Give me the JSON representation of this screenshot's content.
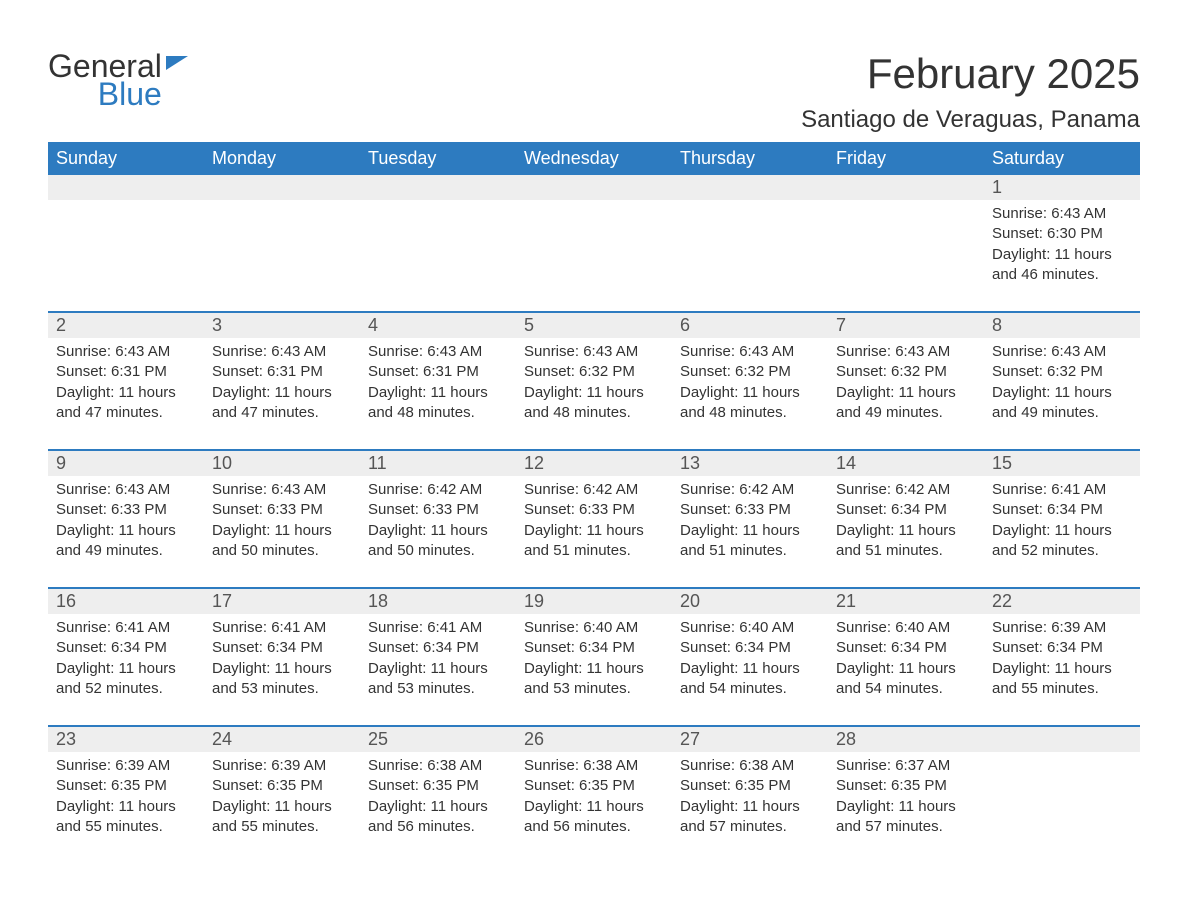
{
  "brand": {
    "general": "General",
    "blue": "Blue"
  },
  "title": "February 2025",
  "location": "Santiago de Veraguas, Panama",
  "colors": {
    "brand_blue": "#2d7bc0",
    "header_bg": "#2d7bc0",
    "header_text": "#ffffff",
    "daynum_bg": "#eeeeee",
    "body_text": "#333333",
    "page_bg": "#ffffff"
  },
  "typography": {
    "title_fontsize": 42,
    "location_fontsize": 24,
    "dow_fontsize": 18,
    "daynum_fontsize": 18,
    "detail_fontsize": 15
  },
  "days_of_week": [
    "Sunday",
    "Monday",
    "Tuesday",
    "Wednesday",
    "Thursday",
    "Friday",
    "Saturday"
  ],
  "labels": {
    "sunrise": "Sunrise:",
    "sunset": "Sunset:",
    "daylight": "Daylight:"
  },
  "weeks": [
    [
      null,
      null,
      null,
      null,
      null,
      null,
      {
        "n": "1",
        "sunrise": "6:43 AM",
        "sunset": "6:30 PM",
        "daylight": "11 hours and 46 minutes."
      }
    ],
    [
      {
        "n": "2",
        "sunrise": "6:43 AM",
        "sunset": "6:31 PM",
        "daylight": "11 hours and 47 minutes."
      },
      {
        "n": "3",
        "sunrise": "6:43 AM",
        "sunset": "6:31 PM",
        "daylight": "11 hours and 47 minutes."
      },
      {
        "n": "4",
        "sunrise": "6:43 AM",
        "sunset": "6:31 PM",
        "daylight": "11 hours and 48 minutes."
      },
      {
        "n": "5",
        "sunrise": "6:43 AM",
        "sunset": "6:32 PM",
        "daylight": "11 hours and 48 minutes."
      },
      {
        "n": "6",
        "sunrise": "6:43 AM",
        "sunset": "6:32 PM",
        "daylight": "11 hours and 48 minutes."
      },
      {
        "n": "7",
        "sunrise": "6:43 AM",
        "sunset": "6:32 PM",
        "daylight": "11 hours and 49 minutes."
      },
      {
        "n": "8",
        "sunrise": "6:43 AM",
        "sunset": "6:32 PM",
        "daylight": "11 hours and 49 minutes."
      }
    ],
    [
      {
        "n": "9",
        "sunrise": "6:43 AM",
        "sunset": "6:33 PM",
        "daylight": "11 hours and 49 minutes."
      },
      {
        "n": "10",
        "sunrise": "6:43 AM",
        "sunset": "6:33 PM",
        "daylight": "11 hours and 50 minutes."
      },
      {
        "n": "11",
        "sunrise": "6:42 AM",
        "sunset": "6:33 PM",
        "daylight": "11 hours and 50 minutes."
      },
      {
        "n": "12",
        "sunrise": "6:42 AM",
        "sunset": "6:33 PM",
        "daylight": "11 hours and 51 minutes."
      },
      {
        "n": "13",
        "sunrise": "6:42 AM",
        "sunset": "6:33 PM",
        "daylight": "11 hours and 51 minutes."
      },
      {
        "n": "14",
        "sunrise": "6:42 AM",
        "sunset": "6:34 PM",
        "daylight": "11 hours and 51 minutes."
      },
      {
        "n": "15",
        "sunrise": "6:41 AM",
        "sunset": "6:34 PM",
        "daylight": "11 hours and 52 minutes."
      }
    ],
    [
      {
        "n": "16",
        "sunrise": "6:41 AM",
        "sunset": "6:34 PM",
        "daylight": "11 hours and 52 minutes."
      },
      {
        "n": "17",
        "sunrise": "6:41 AM",
        "sunset": "6:34 PM",
        "daylight": "11 hours and 53 minutes."
      },
      {
        "n": "18",
        "sunrise": "6:41 AM",
        "sunset": "6:34 PM",
        "daylight": "11 hours and 53 minutes."
      },
      {
        "n": "19",
        "sunrise": "6:40 AM",
        "sunset": "6:34 PM",
        "daylight": "11 hours and 53 minutes."
      },
      {
        "n": "20",
        "sunrise": "6:40 AM",
        "sunset": "6:34 PM",
        "daylight": "11 hours and 54 minutes."
      },
      {
        "n": "21",
        "sunrise": "6:40 AM",
        "sunset": "6:34 PM",
        "daylight": "11 hours and 54 minutes."
      },
      {
        "n": "22",
        "sunrise": "6:39 AM",
        "sunset": "6:34 PM",
        "daylight": "11 hours and 55 minutes."
      }
    ],
    [
      {
        "n": "23",
        "sunrise": "6:39 AM",
        "sunset": "6:35 PM",
        "daylight": "11 hours and 55 minutes."
      },
      {
        "n": "24",
        "sunrise": "6:39 AM",
        "sunset": "6:35 PM",
        "daylight": "11 hours and 55 minutes."
      },
      {
        "n": "25",
        "sunrise": "6:38 AM",
        "sunset": "6:35 PM",
        "daylight": "11 hours and 56 minutes."
      },
      {
        "n": "26",
        "sunrise": "6:38 AM",
        "sunset": "6:35 PM",
        "daylight": "11 hours and 56 minutes."
      },
      {
        "n": "27",
        "sunrise": "6:38 AM",
        "sunset": "6:35 PM",
        "daylight": "11 hours and 57 minutes."
      },
      {
        "n": "28",
        "sunrise": "6:37 AM",
        "sunset": "6:35 PM",
        "daylight": "11 hours and 57 minutes."
      },
      null
    ]
  ]
}
